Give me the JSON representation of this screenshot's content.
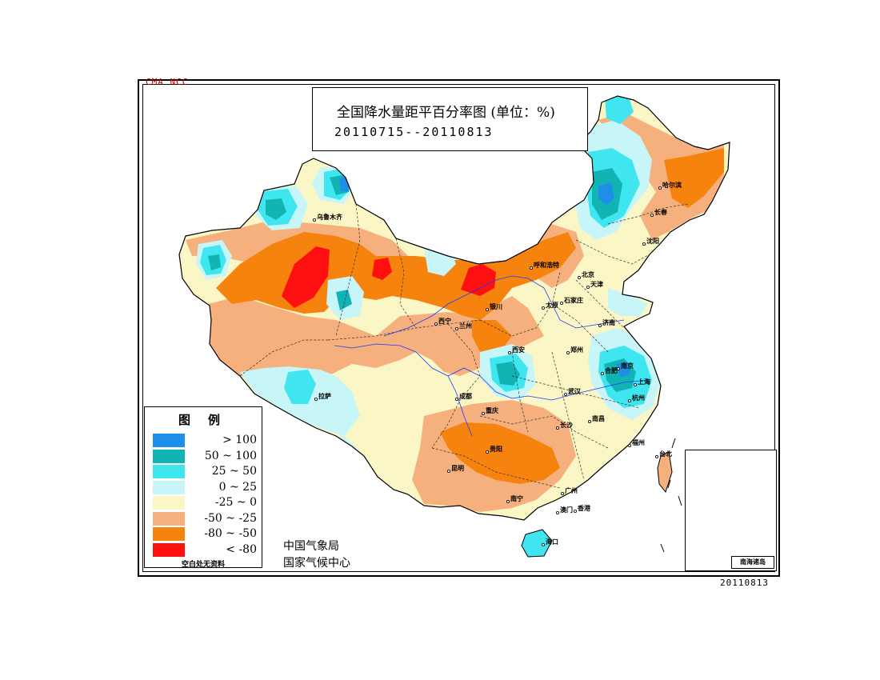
{
  "org_tag": "CMA  NCC",
  "title": {
    "line1": "全国降水量距平百分率图 (单位：%)",
    "line2": "20110715--20110813"
  },
  "legend": {
    "title": "图例",
    "items": [
      {
        "label": "> 100",
        "color": "#1e8fe8"
      },
      {
        "label": "50 ~ 100",
        "color": "#12b3b3"
      },
      {
        "label": "25 ~ 50",
        "color": "#3fe6f0"
      },
      {
        "label": "0 ~ 25",
        "color": "#c8f5f8"
      },
      {
        "label": "-25 ~ 0",
        "color": "#fbf6c6"
      },
      {
        "label": "-50 ~ -25",
        "color": "#f6b07d"
      },
      {
        "label": "-80 ~ -50",
        "color": "#f7830f"
      },
      {
        "label": "< -80",
        "color": "#ff1010"
      }
    ],
    "note": "空白处无资料"
  },
  "org": {
    "line1": "中国气象局",
    "line2": "国家气候中心"
  },
  "date_stamp": "20110813",
  "inset_label": "南海诸岛",
  "cities": [
    {
      "name": "乌鲁木齐"
    },
    {
      "name": "拉萨"
    },
    {
      "name": "西宁"
    },
    {
      "name": "兰州"
    },
    {
      "name": "银川"
    },
    {
      "name": "呼和浩特"
    },
    {
      "name": "太原"
    },
    {
      "name": "石家庄"
    },
    {
      "name": "北京"
    },
    {
      "name": "天津"
    },
    {
      "name": "济南"
    },
    {
      "name": "郑州"
    },
    {
      "name": "西安"
    },
    {
      "name": "合肥"
    },
    {
      "name": "南京"
    },
    {
      "name": "上海"
    },
    {
      "name": "杭州"
    },
    {
      "name": "武汉"
    },
    {
      "name": "成都"
    },
    {
      "name": "重庆"
    },
    {
      "name": "长沙"
    },
    {
      "name": "南昌"
    },
    {
      "name": "福州"
    },
    {
      "name": "台北"
    },
    {
      "name": "贵阳"
    },
    {
      "name": "昆明"
    },
    {
      "name": "南宁"
    },
    {
      "name": "广州"
    },
    {
      "name": "澳门"
    },
    {
      "name": "香港"
    },
    {
      "name": "海口"
    },
    {
      "name": "沈阳"
    },
    {
      "name": "长春"
    },
    {
      "name": "哈尔滨"
    }
  ]
}
